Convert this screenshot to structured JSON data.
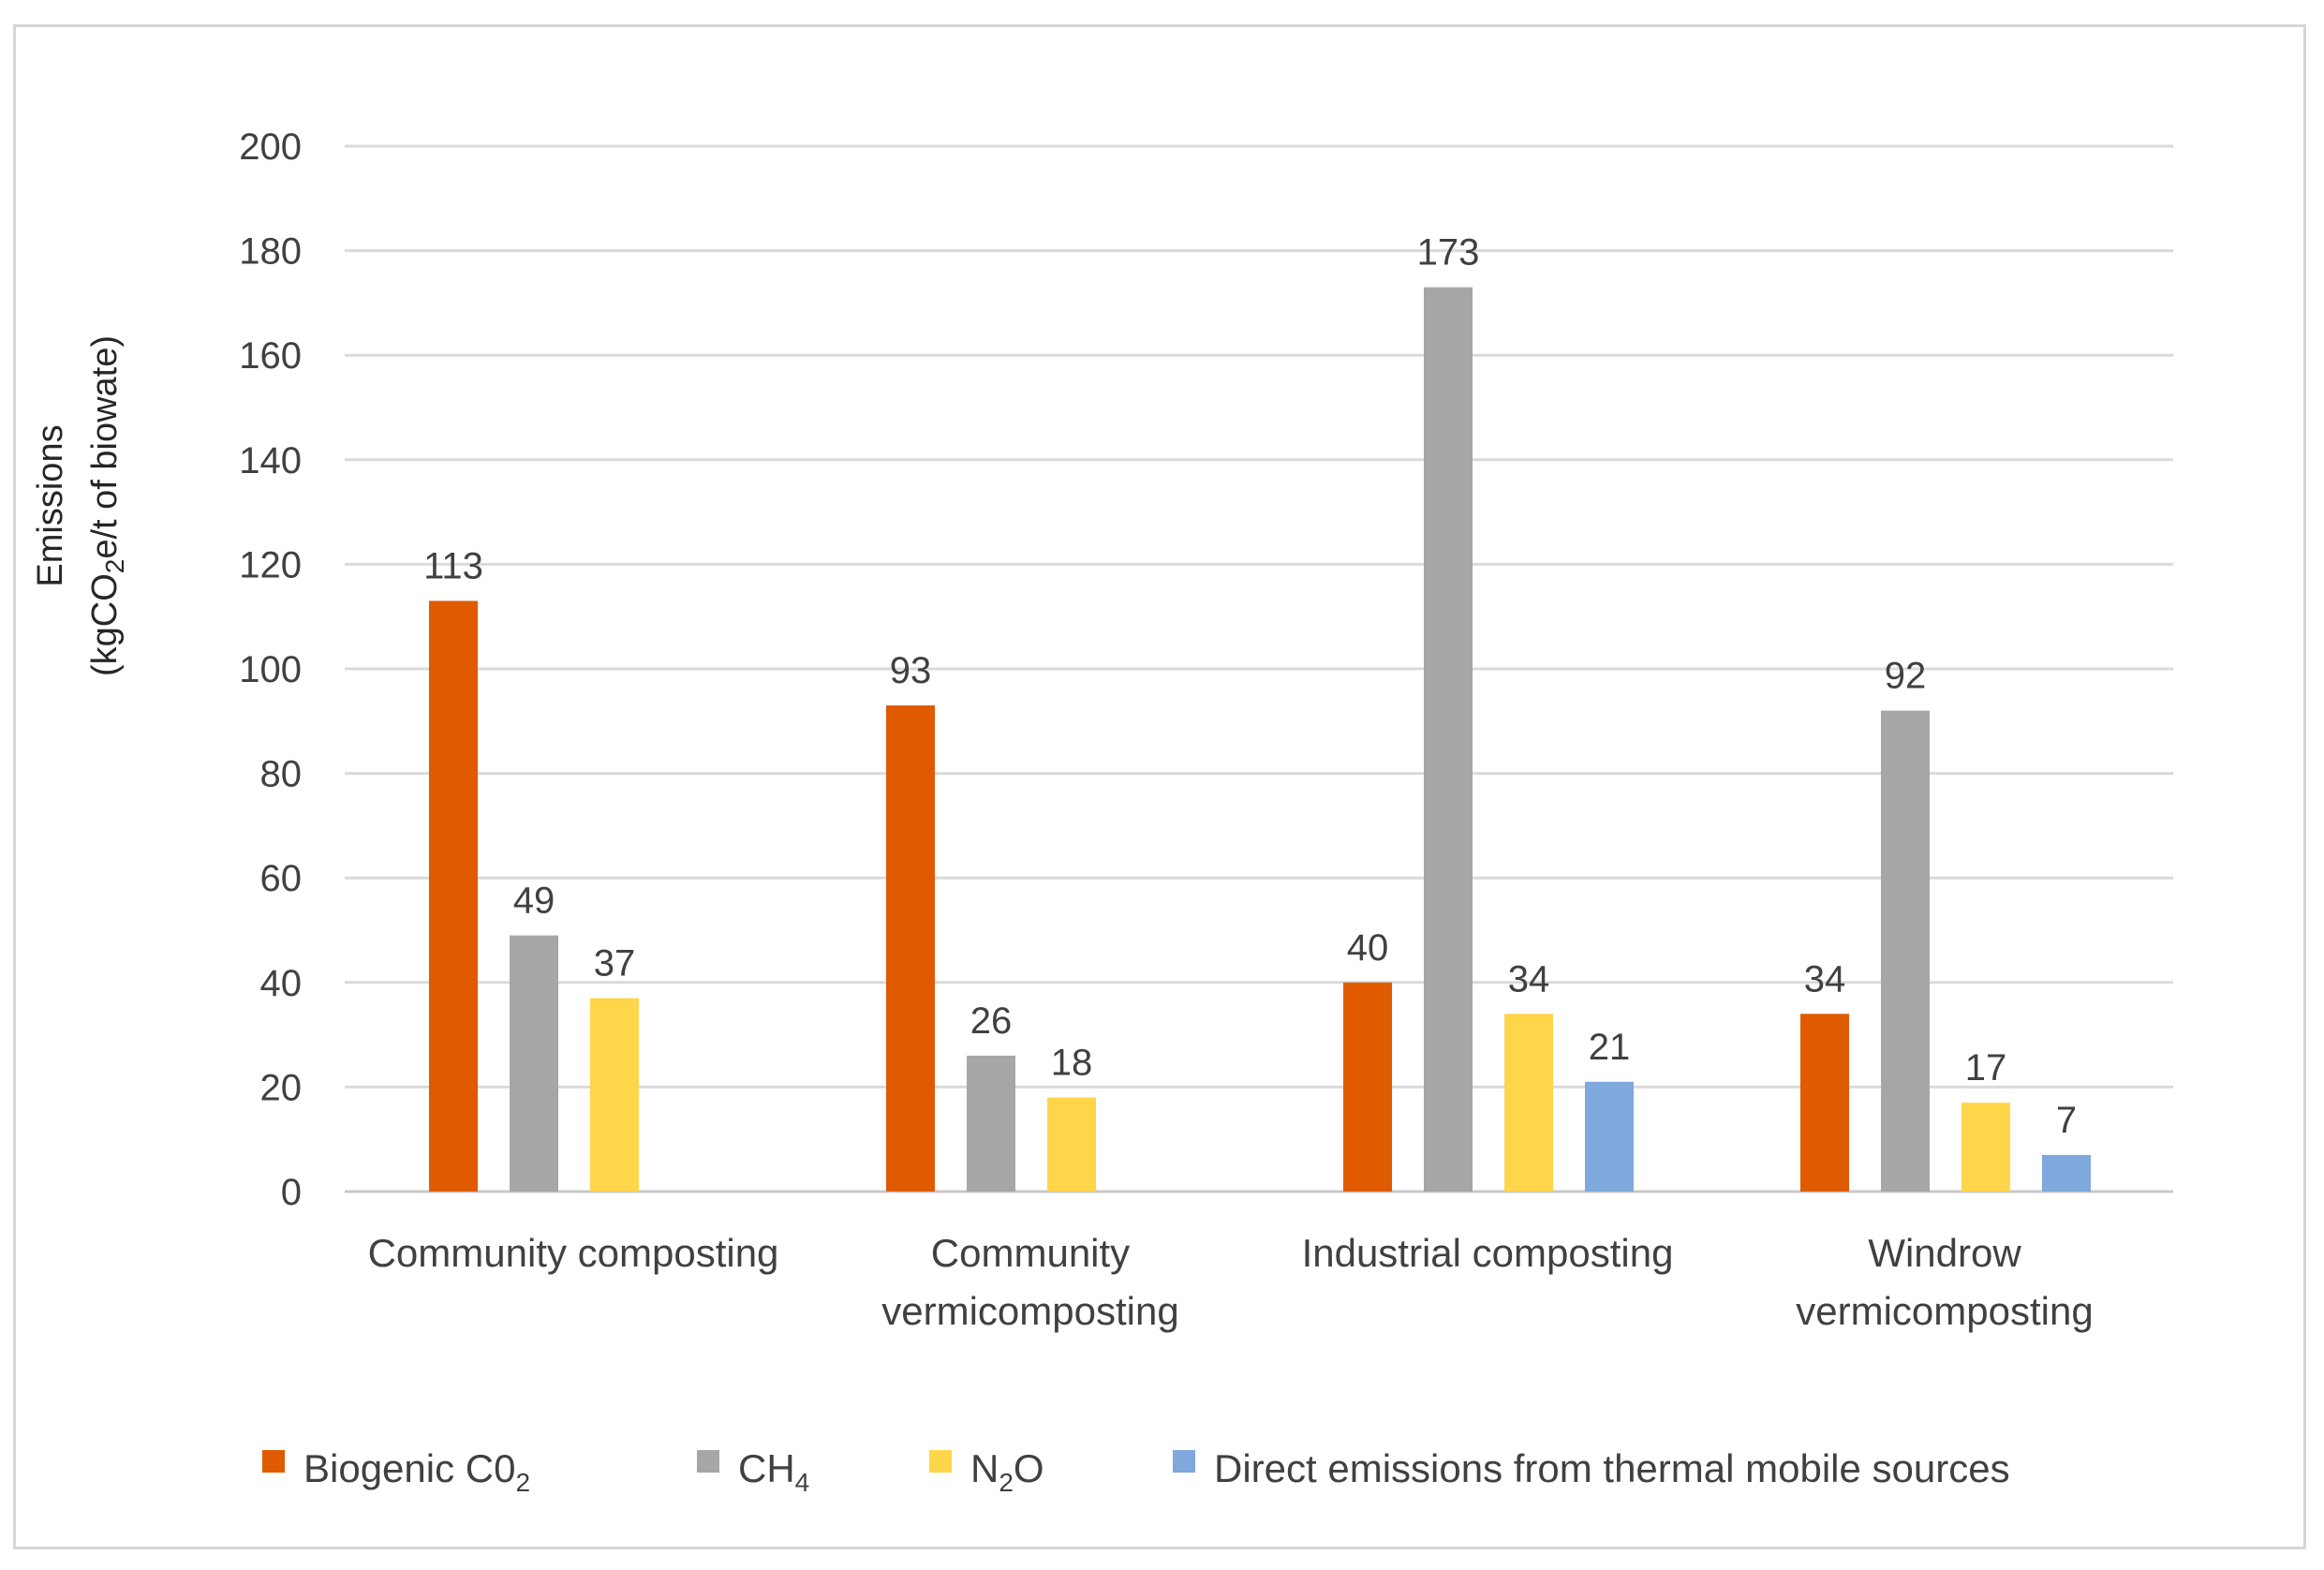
{
  "chart_data": {
    "type": "bar",
    "categories": [
      [
        "Community composting"
      ],
      [
        "Community",
        "vermicomposting"
      ],
      [
        "Industrial composting"
      ],
      [
        "Windrow",
        "vermicomposting"
      ]
    ],
    "series": [
      {
        "name": "Biogenic C0",
        "sub": "2",
        "color": "#e05a00",
        "values": [
          113,
          93,
          40,
          34
        ]
      },
      {
        "name": "CH",
        "sub": "4",
        "color": "#a6a6a6",
        "values": [
          49,
          26,
          173,
          92
        ]
      },
      {
        "name": "N",
        "sub": "2",
        "name_after": "O",
        "color": "#ffd54a",
        "values": [
          37,
          18,
          34,
          17
        ]
      },
      {
        "name": "Direct emissions from thermal mobile sources",
        "color": "#7fa8dc",
        "values": [
          null,
          null,
          21,
          7
        ]
      }
    ],
    "ylim": [
      0,
      200
    ],
    "yticks": [
      0,
      20,
      40,
      60,
      80,
      100,
      120,
      140,
      160,
      180,
      200
    ],
    "ylabel": {
      "line1": "Emissions",
      "line2_pre": "(kgCO",
      "line2_sub": "2",
      "line2_post": "e/t of biowate)"
    },
    "grid": true,
    "legend_position": "bottom"
  }
}
